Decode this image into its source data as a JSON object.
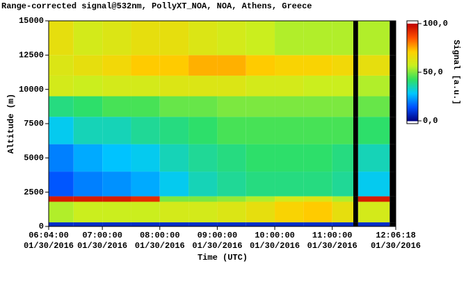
{
  "chart_data": {
    "type": "heatmap",
    "title": "Range-corrected signal@532nm, PollyXT_NOA, NOA, Athens, Greece",
    "xlabel": "Time (UTC)",
    "ylabel": "Altitude (m)",
    "colorbar_label": "Signal [a.u.]",
    "xlim": [
      "2016-01-30 06:04:00",
      "2016-01-30 12:06:18"
    ],
    "xticks": [
      {
        "value": "2016-01-30 06:04:00",
        "label": [
          "06:04:00",
          "01/30/2016"
        ]
      },
      {
        "value": "2016-01-30 07:00:00",
        "label": [
          "07:00:00",
          "01/30/2016"
        ]
      },
      {
        "value": "2016-01-30 08:00:00",
        "label": [
          "08:00:00",
          "01/30/2016"
        ]
      },
      {
        "value": "2016-01-30 09:00:00",
        "label": [
          "09:00:00",
          "01/30/2016"
        ]
      },
      {
        "value": "2016-01-30 10:00:00",
        "label": [
          "10:00:00",
          "01/30/2016"
        ]
      },
      {
        "value": "2016-01-30 11:00:00",
        "label": [
          "11:00:00",
          "01/30/2016"
        ]
      },
      {
        "value": "2016-01-30 12:06:18",
        "label": [
          "12:06:18",
          "01/30/2016"
        ]
      }
    ],
    "ylim": [
      0,
      15000
    ],
    "yticks": [
      0,
      2500,
      5000,
      7500,
      10000,
      12500,
      15000
    ],
    "zlim": [
      0,
      100
    ],
    "zticks": [
      {
        "value": 0,
        "label": "0,0"
      },
      {
        "value": 50,
        "label": "50,0"
      },
      {
        "value": 100,
        "label": "100,0"
      }
    ],
    "colormap": [
      "#000080",
      "#0050ff",
      "#00c8ff",
      "#30e060",
      "#c8f020",
      "#ffd000",
      "#ff5000",
      "#c00000"
    ],
    "missing_color": "#000000",
    "x_bins": [
      "2016-01-30 06:04:00",
      "2016-01-30 06:30:00",
      "2016-01-30 07:00:00",
      "2016-01-30 07:30:00",
      "2016-01-30 08:00:00",
      "2016-01-30 08:30:00",
      "2016-01-30 09:00:00",
      "2016-01-30 09:30:00",
      "2016-01-30 10:00:00",
      "2016-01-30 10:30:00",
      "2016-01-30 11:00:00",
      "2016-01-30 11:22:00",
      "2016-01-30 11:27:00",
      "2016-01-30 12:00:00",
      "2016-01-30 12:06:18"
    ],
    "y_bins": [
      0,
      300,
      1800,
      2200,
      4000,
      6000,
      8000,
      9500,
      11000,
      12500,
      15000
    ],
    "z": [
      [
        8,
        8,
        8,
        8,
        8,
        8,
        8,
        8,
        8,
        8,
        8,
        null,
        8,
        null
      ],
      [
        55,
        58,
        58,
        58,
        60,
        60,
        62,
        65,
        70,
        72,
        65,
        null,
        60,
        null
      ],
      [
        95,
        95,
        95,
        92,
        50,
        50,
        52,
        55,
        60,
        62,
        55,
        null,
        95,
        null
      ],
      [
        15,
        20,
        22,
        25,
        30,
        35,
        38,
        40,
        40,
        40,
        38,
        null,
        30,
        null
      ],
      [
        20,
        25,
        28,
        30,
        35,
        38,
        40,
        42,
        42,
        42,
        40,
        null,
        35,
        null
      ],
      [
        30,
        35,
        35,
        38,
        40,
        42,
        45,
        45,
        45,
        45,
        45,
        null,
        42,
        null
      ],
      [
        40,
        42,
        45,
        45,
        48,
        48,
        50,
        50,
        50,
        50,
        50,
        null,
        48,
        null
      ],
      [
        60,
        58,
        60,
        60,
        62,
        62,
        62,
        60,
        60,
        58,
        58,
        null,
        55,
        null
      ],
      [
        62,
        65,
        68,
        72,
        72,
        75,
        75,
        72,
        70,
        70,
        68,
        null,
        65,
        null
      ],
      [
        65,
        60,
        62,
        65,
        65,
        62,
        60,
        58,
        55,
        55,
        55,
        null,
        55,
        null
      ]
    ]
  }
}
